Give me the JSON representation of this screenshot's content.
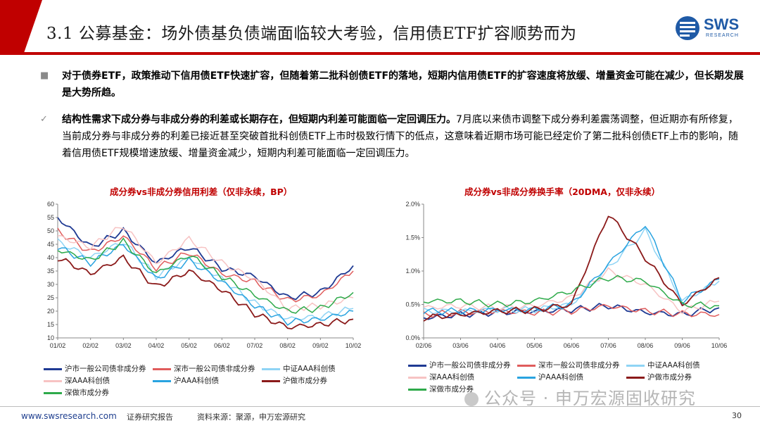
{
  "header": {
    "title": "3.1 公募基金：场外债基负债端面临较大考验，信用债ETF扩容顺势而为",
    "logo_text": "SWS",
    "logo_sub": "RESEARCH"
  },
  "bullets": [
    {
      "mark": "■",
      "text": "对于债券ETF，政策推动下信用债ETF快速扩容，但随着第二批科创债ETF的落地，短期内信用债ETF的扩容速度将放缓、增量资金可能在减少，但长期发展是大势所趋。"
    },
    {
      "mark": "✓",
      "bold_text": "结构性需求下成分券与非成分券的利差或长期存在，但短期内利差可能面临一定回调压力。",
      "text": "7月底以来债市调整下成分券利差震荡调整，但近期亦有所修复，当前成分券与非成分券的利差已接近甚至突破首批科创债ETF上市时极致行情下的低点，这意味着近期市场可能已经定价了第二批科创债ETF上市的影响，随着信用债ETF规模增速放缓、增量资金减少，短期内利差可能面临一定回调压力。"
    }
  ],
  "chart_data": [
    {
      "type": "line",
      "title": "成分券vs非成分券信用利差（仅非永续，BP）",
      "x": [
        "01/02",
        "02/02",
        "03/02",
        "04/02",
        "05/02",
        "06/02",
        "07/02",
        "08/02",
        "09/02",
        "10/02"
      ],
      "ylim": [
        10,
        60
      ],
      "yticks": [
        "10",
        "15",
        "20",
        "25",
        "30",
        "35",
        "40",
        "45",
        "50",
        "55",
        "60"
      ],
      "series": [
        {
          "name": "沪市一般公司债非成分券",
          "color": "#1f3a93",
          "values": [
            55,
            44,
            50,
            38,
            44,
            36,
            33,
            25,
            27,
            37
          ]
        },
        {
          "name": "深市一般公司债非成分券",
          "color": "#e05c5c",
          "values": [
            50,
            42,
            48,
            36,
            42,
            34,
            31,
            24,
            26,
            35
          ]
        },
        {
          "name": "中证AAA科创债",
          "color": "#8fd4f5",
          "values": [
            46,
            40,
            46,
            33,
            40,
            32,
            23,
            17,
            18,
            21
          ]
        },
        {
          "name": "深AAA科创债",
          "color": "#f7c3c3",
          "values": [
            48,
            44,
            52,
            38,
            47,
            38,
            32,
            21,
            22,
            25
          ]
        },
        {
          "name": "沪AAA科创债",
          "color": "#29a3e0",
          "values": [
            44,
            38,
            45,
            32,
            39,
            31,
            22,
            16,
            17,
            20
          ]
        },
        {
          "name": "沪做市成分券",
          "color": "#8b1a1a",
          "values": [
            40,
            34,
            40,
            29,
            35,
            28,
            19,
            14,
            15,
            17
          ]
        },
        {
          "name": "深做市成分券",
          "color": "#2eaa4a",
          "values": [
            43,
            39,
            46,
            34,
            41,
            33,
            26,
            20,
            21,
            27
          ]
        }
      ]
    },
    {
      "type": "line",
      "title": "成分券vs非成分券换手率（20DMA，仅非永续）",
      "x": [
        "02/06",
        "03/06",
        "04/06",
        "05/06",
        "06/06",
        "07/06",
        "08/06",
        "09/06",
        "10/06"
      ],
      "ylim": [
        0,
        2.0
      ],
      "yticks": [
        "0.0%",
        "0.5%",
        "1.0%",
        "1.5%",
        "2.0%"
      ],
      "series": [
        {
          "name": "沪市一般公司债非成分券",
          "color": "#1f3a93",
          "values": [
            0.3,
            0.35,
            0.38,
            0.4,
            0.42,
            0.48,
            0.38,
            0.35,
            0.45
          ]
        },
        {
          "name": "深市一般公司债非成分券",
          "color": "#e05c5c",
          "values": [
            0.35,
            0.38,
            0.4,
            0.38,
            0.4,
            0.48,
            0.4,
            0.36,
            0.35
          ]
        },
        {
          "name": "中证AAA科创债",
          "color": "#8fd4f5",
          "values": [
            0.4,
            0.4,
            0.42,
            0.42,
            0.5,
            1.05,
            1.6,
            0.55,
            0.85
          ]
        },
        {
          "name": "深AAA科创债",
          "color": "#f7c3c3",
          "values": [
            0.45,
            0.48,
            0.45,
            0.48,
            0.6,
            1.0,
            0.8,
            0.4,
            0.55
          ]
        },
        {
          "name": "沪AAA科创债",
          "color": "#29a3e0",
          "values": [
            0.4,
            0.4,
            0.42,
            0.42,
            0.5,
            1.1,
            1.7,
            0.55,
            0.88
          ]
        },
        {
          "name": "沪做市成分券",
          "color": "#8b1a1a",
          "values": [
            0.3,
            0.35,
            0.4,
            0.42,
            0.5,
            1.85,
            1.2,
            0.5,
            0.9
          ]
        },
        {
          "name": "深做市成分券",
          "color": "#2eaa4a",
          "values": [
            0.55,
            0.55,
            0.5,
            0.55,
            0.7,
            0.9,
            0.85,
            0.5,
            0.48
          ]
        }
      ]
    }
  ],
  "legend": [
    [
      "沪市一般公司债非成分券",
      "深市一般公司债非成分券",
      "中证AAA科创债",
      "深AAA科创债",
      "沪AAA科创债",
      "沪做市成分券",
      "深做市成分券"
    ]
  ],
  "footer": {
    "url": "www.swsresearch.com",
    "report_type": "证券研究报告",
    "source": "资料来源：聚源，申万宏源研究",
    "page": "30"
  },
  "watermark": "公众号 · 申万宏源固收研究"
}
